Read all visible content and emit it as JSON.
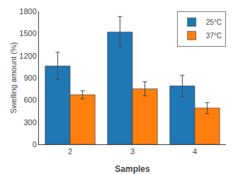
{
  "chart_data": {
    "type": "bar",
    "categories": [
      "2",
      "3",
      "4"
    ],
    "series": [
      {
        "name": "25°C",
        "values": [
          1060,
          1520,
          790
        ],
        "errors": [
          185,
          210,
          145
        ]
      },
      {
        "name": "37°C",
        "values": [
          670,
          750,
          490
        ],
        "errors": [
          55,
          95,
          75
        ]
      }
    ],
    "xlabel": "Samples",
    "ylabel": "Swelling amount (%)",
    "ylim": [
      0,
      1800
    ],
    "yticks": [
      0,
      300,
      600,
      900,
      1200,
      1500,
      1800
    ],
    "grid": false,
    "legend": "upper right"
  }
}
